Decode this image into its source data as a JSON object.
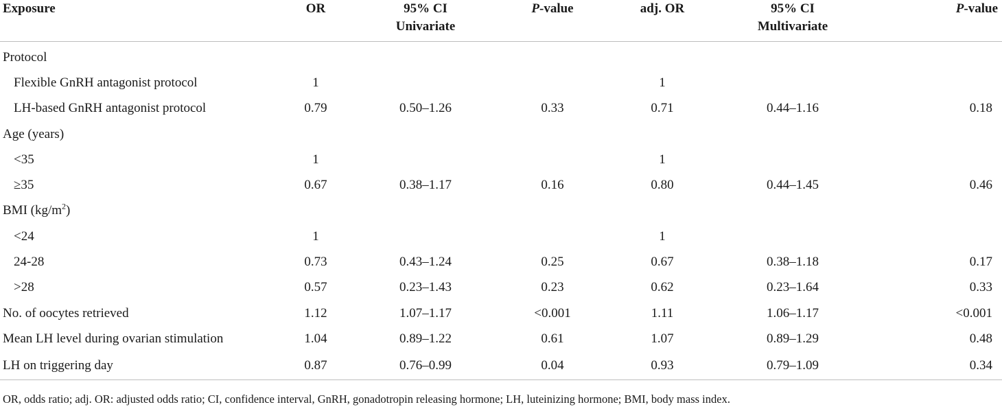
{
  "headers": {
    "exposure": "Exposure",
    "or": "OR",
    "ci_uni_line1": "95% CI",
    "ci_uni_line2": "Univariate",
    "p_uni_italic": "P",
    "p_uni_rest": "-value",
    "adj_or": "adj. OR",
    "ci_multi_line1": "95% CI",
    "ci_multi_line2": "Multivariate",
    "p_multi_italic": "P",
    "p_multi_rest": "-value"
  },
  "rows": [
    {
      "label": "Protocol",
      "or": "",
      "ci": "",
      "p": "",
      "adj_or": "",
      "adj_ci": "",
      "adj_p": ""
    },
    {
      "label": "Flexible GnRH antagonist protocol",
      "or": "1",
      "ci": "",
      "p": "",
      "adj_or": "1",
      "adj_ci": "",
      "adj_p": ""
    },
    {
      "label": "LH-based GnRH antagonist protocol",
      "or": "0.79",
      "ci": "0.50–1.26",
      "p": "0.33",
      "adj_or": "0.71",
      "adj_ci": "0.44–1.16",
      "adj_p": "0.18"
    },
    {
      "label": "Age (years)",
      "or": "",
      "ci": "",
      "p": "",
      "adj_or": "",
      "adj_ci": "",
      "adj_p": ""
    },
    {
      "label": "<35",
      "or": "1",
      "ci": "",
      "p": "",
      "adj_or": "1",
      "adj_ci": "",
      "adj_p": ""
    },
    {
      "label": "≥35",
      "or": "0.67",
      "ci": "0.38–1.17",
      "p": "0.16",
      "adj_or": "0.80",
      "adj_ci": "0.44–1.45",
      "adj_p": "0.46"
    },
    {
      "label": "BMI (kg/m",
      "label_sup": "2",
      "label_tail": ")",
      "or": "",
      "ci": "",
      "p": "",
      "adj_or": "",
      "adj_ci": "",
      "adj_p": ""
    },
    {
      "label": "<24",
      "or": "1",
      "ci": "",
      "p": "",
      "adj_or": "1",
      "adj_ci": "",
      "adj_p": ""
    },
    {
      "label": "24-28",
      "or": "0.73",
      "ci": "0.43–1.24",
      "p": "0.25",
      "adj_or": "0.67",
      "adj_ci": "0.38–1.18",
      "adj_p": "0.17"
    },
    {
      "label": ">28",
      "or": "0.57",
      "ci": "0.23–1.43",
      "p": "0.23",
      "adj_or": "0.62",
      "adj_ci": "0.23–1.64",
      "adj_p": "0.33"
    },
    {
      "label": "No. of oocytes retrieved",
      "or": "1.12",
      "ci": "1.07–1.17",
      "p": "<0.001",
      "adj_or": "1.11",
      "adj_ci": "1.06–1.17",
      "adj_p": "<0.001"
    },
    {
      "label": "Mean LH level during ovarian stimulation",
      "or": "1.04",
      "ci": "0.89–1.22",
      "p": "0.61",
      "adj_or": "1.07",
      "adj_ci": "0.89–1.29",
      "adj_p": "0.48"
    },
    {
      "label": "LH on triggering day",
      "or": "0.87",
      "ci": "0.76–0.99",
      "p": "0.04",
      "adj_or": "0.93",
      "adj_ci": "0.79–1.09",
      "adj_p": "0.34"
    }
  ],
  "footnote": "OR, odds ratio; adj. OR: adjusted odds ratio; CI, confidence interval, GnRH, gonadotropin releasing hormone; LH, luteinizing hormone; BMI, body mass index."
}
